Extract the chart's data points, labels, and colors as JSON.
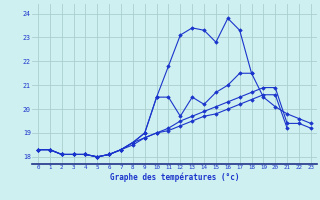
{
  "title": "Graphe des températures (°c)",
  "bg_color": "#cff0f0",
  "grid_color": "#aacfcf",
  "line_color": "#1a35cc",
  "hours": [
    0,
    1,
    2,
    3,
    4,
    5,
    6,
    7,
    8,
    9,
    10,
    11,
    12,
    13,
    14,
    15,
    16,
    17,
    18,
    19,
    20,
    21,
    22,
    23
  ],
  "ylim": [
    17.7,
    24.4
  ],
  "yticks": [
    18,
    19,
    20,
    21,
    22,
    23,
    24
  ],
  "curve_main": [
    18.3,
    18.3,
    18.1,
    18.1,
    18.1,
    18.0,
    18.1,
    18.3,
    18.6,
    19.0,
    20.5,
    21.8,
    23.1,
    23.4,
    23.3,
    22.8,
    23.8,
    23.3,
    21.5,
    null,
    null,
    null,
    null,
    null
  ],
  "curve_hi": [
    null,
    null,
    null,
    null,
    null,
    null,
    null,
    null,
    null,
    null,
    null,
    null,
    null,
    null,
    null,
    null,
    23.8,
    23.3,
    21.5,
    20.5,
    null,
    null,
    null,
    null
  ],
  "curve_med": [
    18.3,
    18.3,
    18.1,
    18.1,
    18.1,
    18.0,
    18.1,
    18.3,
    18.6,
    19.0,
    20.5,
    20.5,
    19.7,
    20.5,
    20.2,
    20.7,
    21.0,
    21.5,
    21.5,
    20.5,
    20.1,
    19.8,
    19.6,
    19.4
  ],
  "curve_low": [
    18.3,
    18.3,
    18.1,
    18.1,
    18.1,
    18.0,
    18.1,
    18.3,
    18.6,
    18.8,
    19.0,
    19.2,
    19.5,
    19.7,
    19.9,
    20.1,
    20.3,
    20.5,
    20.7,
    20.9,
    20.9,
    19.4,
    19.4,
    19.2
  ],
  "curve_line2": [
    18.3,
    18.3,
    18.1,
    18.1,
    18.1,
    18.0,
    18.1,
    18.3,
    18.5,
    18.8,
    19.0,
    19.1,
    19.3,
    19.5,
    19.7,
    19.8,
    20.0,
    20.2,
    20.4,
    20.6,
    20.6,
    19.2,
    null,
    null
  ]
}
